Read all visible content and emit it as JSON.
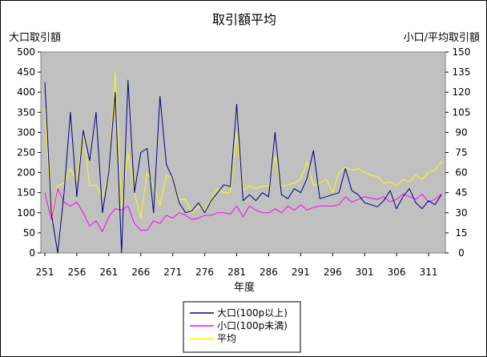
{
  "chart_data": {
    "type": "line",
    "title": "取引額平均",
    "xlabel": "年度",
    "ylabel_left": "大口取引額",
    "ylabel_right": "小口/平均取引額",
    "ylim_left": [
      0,
      500
    ],
    "ylim_right": [
      0,
      150
    ],
    "yticks_left": [
      "0",
      "50",
      "100",
      "150",
      "200",
      "250",
      "300",
      "350",
      "400",
      "450",
      "500"
    ],
    "yticks_right": [
      "0",
      "15",
      "30",
      "45",
      "60",
      "75",
      "90",
      "105",
      "120",
      "135",
      "150"
    ],
    "xtick_labels": [
      "251",
      "256",
      "261",
      "266",
      "271",
      "276",
      "281",
      "286",
      "291",
      "296",
      "301",
      "306",
      "311"
    ],
    "xtick_values": [
      251,
      256,
      261,
      266,
      271,
      276,
      281,
      286,
      291,
      296,
      301,
      306,
      311
    ],
    "x": [
      251,
      252,
      253,
      254,
      255,
      256,
      257,
      258,
      259,
      260,
      261,
      262,
      263,
      264,
      265,
      266,
      267,
      268,
      269,
      270,
      271,
      272,
      273,
      274,
      275,
      276,
      277,
      278,
      279,
      280,
      281,
      282,
      283,
      284,
      285,
      286,
      287,
      288,
      289,
      290,
      291,
      292,
      293,
      294,
      295,
      296,
      297,
      298,
      299,
      300,
      301,
      302,
      303,
      304,
      305,
      306,
      307,
      308,
      309,
      310,
      311,
      312,
      313
    ],
    "series": [
      {
        "name": "大口(100p以上)",
        "axis": "left",
        "color": "#000080",
        "values": [
          425,
          100,
          0,
          150,
          350,
          140,
          305,
          230,
          350,
          100,
          200,
          400,
          0,
          430,
          150,
          250,
          260,
          100,
          390,
          220,
          185,
          125,
          100,
          105,
          125,
          100,
          130,
          150,
          170,
          165,
          370,
          130,
          145,
          130,
          150,
          140,
          300,
          145,
          135,
          160,
          150,
          185,
          255,
          135,
          140,
          145,
          150,
          210,
          155,
          145,
          125,
          120,
          115,
          130,
          155,
          110,
          140,
          160,
          125,
          110,
          130,
          120,
          145
        ]
      },
      {
        "name": "小口(100p未満)",
        "axis": "right",
        "color": "#FF00FF",
        "values": [
          45,
          25,
          48,
          38,
          35,
          38,
          30,
          20,
          24,
          16,
          27,
          33,
          32,
          35,
          22,
          17,
          17,
          24,
          22,
          28,
          26,
          30,
          28,
          25,
          26,
          28,
          28,
          30,
          30,
          29,
          35,
          27,
          35,
          32,
          30,
          30,
          33,
          30,
          35,
          32,
          36,
          32,
          34,
          35,
          35,
          35,
          36,
          42,
          38,
          40,
          42,
          41,
          40,
          42,
          38,
          40,
          44,
          42,
          40,
          44,
          38,
          40,
          44
        ]
      },
      {
        "name": "平均",
        "axis": "right",
        "color": "#FFFF00",
        "values": [
          108,
          27,
          50,
          52,
          63,
          54,
          90,
          50,
          51,
          42,
          58,
          135,
          33,
          75,
          45,
          26,
          60,
          50,
          35,
          58,
          56,
          40,
          40,
          30,
          35,
          32,
          40,
          48,
          45,
          45,
          90,
          47,
          50,
          48,
          50,
          50,
          72,
          50,
          51,
          52,
          55,
          68,
          50,
          52,
          55,
          45,
          60,
          64,
          62,
          63,
          60,
          58,
          57,
          52,
          53,
          50,
          55,
          53,
          58,
          55,
          60,
          62,
          68
        ]
      }
    ],
    "legend_position": "bottom",
    "grid": false
  }
}
